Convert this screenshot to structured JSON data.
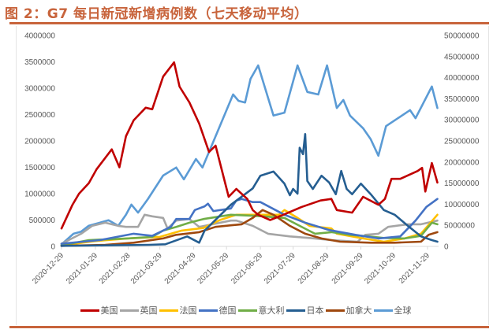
{
  "chart_data": {
    "type": "line",
    "title": "图 2：G7 每日新冠新增病例数（七天移动平均）",
    "x_origin_date": "2020-12-29",
    "x_unit": "days since 2020-12-29",
    "x_ticks": [
      "2020-12-29",
      "2021-01-29",
      "2021-02-28",
      "2021-03-29",
      "2021-04-29",
      "2021-05-29",
      "2021-06-29",
      "2021-07-29",
      "2021-08-29",
      "2021-09-29",
      "2021-10-29",
      "2021-11-29"
    ],
    "x_tick_days": [
      0,
      31,
      61,
      90,
      121,
      151,
      182,
      212,
      243,
      274,
      304,
      335
    ],
    "x_range_days": [
      0,
      345
    ],
    "y_left": {
      "range": [
        0,
        4000000
      ],
      "ticks": [
        "0",
        "500000",
        "1000000",
        "1500000",
        "2000000",
        "2500000",
        "3000000",
        "3500000",
        "4000000"
      ]
    },
    "y_right": {
      "range": [
        0,
        50000000
      ],
      "ticks": [
        "0",
        "5000000",
        "10000000",
        "15000000",
        "20000000",
        "25000000",
        "30000000",
        "35000000",
        "40000000",
        "45000000",
        "50000000"
      ]
    },
    "grid": false,
    "legend_position": "bottom",
    "series": [
      {
        "name": "全球",
        "color": "#5b9bd5",
        "axis": "right",
        "points": [
          [
            0,
            500000
          ],
          [
            11,
            3000000
          ],
          [
            18,
            3500000
          ],
          [
            25,
            4900000
          ],
          [
            43,
            6200000
          ],
          [
            52,
            4900000
          ],
          [
            59,
            7500000
          ],
          [
            64,
            9900000
          ],
          [
            70,
            8000000
          ],
          [
            79,
            11200000
          ],
          [
            93,
            16800000
          ],
          [
            105,
            18700000
          ],
          [
            112,
            15900000
          ],
          [
            123,
            20700000
          ],
          [
            129,
            18700000
          ],
          [
            141,
            26100000
          ],
          [
            157,
            36000000
          ],
          [
            162,
            34500000
          ],
          [
            168,
            34100000
          ],
          [
            173,
            39700000
          ],
          [
            180,
            42900000
          ],
          [
            194,
            31000000
          ],
          [
            204,
            31700000
          ],
          [
            216,
            42900000
          ],
          [
            225,
            36600000
          ],
          [
            235,
            36000000
          ],
          [
            243,
            42900000
          ],
          [
            252,
            32800000
          ],
          [
            258,
            34700000
          ],
          [
            264,
            31000000
          ],
          [
            276,
            28000000
          ],
          [
            283,
            25400000
          ],
          [
            290,
            21500000
          ],
          [
            297,
            28500000
          ],
          [
            308,
            30400000
          ],
          [
            319,
            32300000
          ],
          [
            324,
            30400000
          ],
          [
            339,
            37900000
          ],
          [
            344,
            32800000
          ]
        ]
      },
      {
        "name": "英国",
        "color": "#a5a5a5",
        "axis": "left",
        "points": [
          [
            0,
            50000
          ],
          [
            18,
            240000
          ],
          [
            28,
            390000
          ],
          [
            40,
            450000
          ],
          [
            52,
            390000
          ],
          [
            59,
            370000
          ],
          [
            70,
            370000
          ],
          [
            76,
            600000
          ],
          [
            83,
            570000
          ],
          [
            93,
            540000
          ],
          [
            97,
            340000
          ],
          [
            105,
            490000
          ],
          [
            117,
            520000
          ],
          [
            126,
            370000
          ],
          [
            155,
            490000
          ],
          [
            160,
            490000
          ],
          [
            175,
            390000
          ],
          [
            189,
            240000
          ],
          [
            209,
            190000
          ],
          [
            227,
            160000
          ],
          [
            247,
            120000
          ],
          [
            271,
            90000
          ],
          [
            278,
            220000
          ],
          [
            290,
            240000
          ],
          [
            299,
            370000
          ],
          [
            317,
            420000
          ],
          [
            329,
            420000
          ],
          [
            344,
            490000
          ]
        ]
      },
      {
        "name": "法国",
        "color": "#ffc000",
        "axis": "left",
        "points": [
          [
            0,
            20000
          ],
          [
            30,
            100000
          ],
          [
            60,
            150000
          ],
          [
            90,
            180000
          ],
          [
            110,
            300000
          ],
          [
            130,
            350000
          ],
          [
            145,
            500000
          ],
          [
            160,
            600000
          ],
          [
            199,
            600000
          ],
          [
            204,
            690000
          ],
          [
            216,
            540000
          ],
          [
            227,
            390000
          ],
          [
            247,
            340000
          ],
          [
            252,
            240000
          ],
          [
            276,
            150000
          ],
          [
            295,
            90000
          ],
          [
            314,
            150000
          ],
          [
            329,
            240000
          ],
          [
            344,
            600000
          ]
        ]
      },
      {
        "name": "意大利",
        "color": "#70ad47",
        "axis": "left",
        "points": [
          [
            0,
            20000
          ],
          [
            25,
            120000
          ],
          [
            60,
            150000
          ],
          [
            83,
            180000
          ],
          [
            93,
            300000
          ],
          [
            105,
            370000
          ],
          [
            117,
            450000
          ],
          [
            130,
            520000
          ],
          [
            155,
            600000
          ],
          [
            175,
            580000
          ],
          [
            184,
            570000
          ],
          [
            204,
            540000
          ],
          [
            218,
            390000
          ],
          [
            232,
            240000
          ],
          [
            247,
            270000
          ],
          [
            264,
            220000
          ],
          [
            281,
            190000
          ],
          [
            295,
            160000
          ],
          [
            314,
            150000
          ],
          [
            329,
            200000
          ],
          [
            339,
            450000
          ],
          [
            344,
            420000
          ]
        ]
      },
      {
        "name": "加拿大",
        "color": "#9e480e",
        "axis": "left",
        "points": [
          [
            0,
            10000
          ],
          [
            40,
            30000
          ],
          [
            66,
            70000
          ],
          [
            93,
            150000
          ],
          [
            105,
            220000
          ],
          [
            126,
            270000
          ],
          [
            141,
            370000
          ],
          [
            155,
            400000
          ],
          [
            165,
            420000
          ],
          [
            175,
            540000
          ],
          [
            184,
            690000
          ],
          [
            194,
            600000
          ],
          [
            209,
            390000
          ],
          [
            223,
            240000
          ],
          [
            238,
            150000
          ],
          [
            255,
            90000
          ],
          [
            283,
            70000
          ],
          [
            305,
            70000
          ],
          [
            329,
            90000
          ],
          [
            336,
            220000
          ],
          [
            344,
            270000
          ]
        ]
      },
      {
        "name": "德国",
        "color": "#4472c4",
        "axis": "left",
        "points": [
          [
            0,
            50000
          ],
          [
            35,
            120000
          ],
          [
            66,
            240000
          ],
          [
            83,
            200000
          ],
          [
            93,
            300000
          ],
          [
            100,
            370000
          ],
          [
            105,
            520000
          ],
          [
            117,
            520000
          ],
          [
            122,
            690000
          ],
          [
            131,
            760000
          ],
          [
            134,
            810000
          ],
          [
            139,
            670000
          ],
          [
            155,
            720000
          ],
          [
            160,
            870000
          ],
          [
            165,
            900000
          ],
          [
            175,
            840000
          ],
          [
            182,
            840000
          ],
          [
            204,
            600000
          ],
          [
            223,
            450000
          ],
          [
            245,
            310000
          ],
          [
            269,
            220000
          ],
          [
            290,
            150000
          ],
          [
            310,
            190000
          ],
          [
            324,
            490000
          ],
          [
            334,
            750000
          ],
          [
            344,
            900000
          ]
        ]
      },
      {
        "name": "日本",
        "color": "#255e91",
        "axis": "left",
        "points": [
          [
            0,
            10000
          ],
          [
            40,
            20000
          ],
          [
            80,
            30000
          ],
          [
            95,
            40000
          ],
          [
            115,
            190000
          ],
          [
            126,
            70000
          ],
          [
            131,
            300000
          ],
          [
            155,
            790000
          ],
          [
            175,
            1100000
          ],
          [
            182,
            1340000
          ],
          [
            194,
            1420000
          ],
          [
            204,
            1190000
          ],
          [
            209,
            970000
          ],
          [
            212,
            1090000
          ],
          [
            216,
            1000000
          ],
          [
            218,
            1870000
          ],
          [
            221,
            1750000
          ],
          [
            223,
            2130000
          ],
          [
            225,
            1240000
          ],
          [
            230,
            1090000
          ],
          [
            238,
            1340000
          ],
          [
            245,
            1210000
          ],
          [
            251,
            990000
          ],
          [
            256,
            1430000
          ],
          [
            261,
            1090000
          ],
          [
            266,
            990000
          ],
          [
            274,
            1190000
          ],
          [
            283,
            990000
          ],
          [
            295,
            690000
          ],
          [
            305,
            600000
          ],
          [
            317,
            390000
          ],
          [
            329,
            190000
          ],
          [
            339,
            120000
          ],
          [
            344,
            90000
          ]
        ]
      },
      {
        "name": "美国",
        "color": "#c00000",
        "axis": "left",
        "points": [
          [
            0,
            340000
          ],
          [
            10,
            790000
          ],
          [
            16,
            1000000
          ],
          [
            25,
            1200000
          ],
          [
            32,
            1460000
          ],
          [
            46,
            1840000
          ],
          [
            53,
            1500000
          ],
          [
            59,
            2090000
          ],
          [
            66,
            2390000
          ],
          [
            77,
            2630000
          ],
          [
            83,
            2600000
          ],
          [
            93,
            3220000
          ],
          [
            103,
            3490000
          ],
          [
            108,
            3030000
          ],
          [
            117,
            2730000
          ],
          [
            126,
            2330000
          ],
          [
            135,
            1790000
          ],
          [
            141,
            1910000
          ],
          [
            153,
            940000
          ],
          [
            160,
            1090000
          ],
          [
            170,
            900000
          ],
          [
            175,
            690000
          ],
          [
            180,
            600000
          ],
          [
            191,
            500000
          ],
          [
            203,
            600000
          ],
          [
            220,
            750000
          ],
          [
            237,
            870000
          ],
          [
            247,
            900000
          ],
          [
            252,
            690000
          ],
          [
            266,
            640000
          ],
          [
            276,
            940000
          ],
          [
            290,
            790000
          ],
          [
            296,
            900000
          ],
          [
            302,
            1280000
          ],
          [
            310,
            1280000
          ],
          [
            326,
            1430000
          ],
          [
            330,
            1490000
          ],
          [
            333,
            1040000
          ],
          [
            339,
            1580000
          ],
          [
            344,
            1210000
          ]
        ]
      }
    ],
    "legend": [
      "美国",
      "英国",
      "法国",
      "德国",
      "意大利",
      "日本",
      "加拿大",
      "全球"
    ]
  }
}
